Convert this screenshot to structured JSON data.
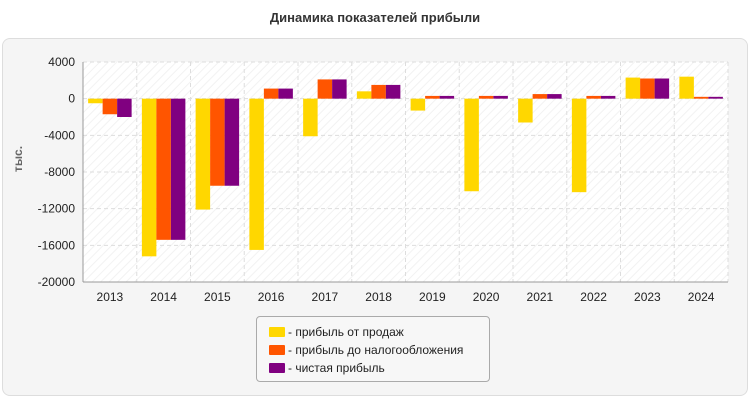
{
  "chart_data": {
    "type": "bar",
    "title": "Динамика показателей прибыли",
    "ylabel": "тыс.",
    "xlabel": "",
    "ylim": [
      -20000,
      4000
    ],
    "yticks": [
      4000,
      0,
      -4000,
      -8000,
      -12000,
      -16000,
      -20000
    ],
    "grid": true,
    "legend_position": "bottom",
    "categories": [
      "2013",
      "2014",
      "2015",
      "2016",
      "2017",
      "2018",
      "2019",
      "2020",
      "2021",
      "2022",
      "2023",
      "2024"
    ],
    "series": [
      {
        "name": "прибыль от продаж",
        "color": "#FFD700",
        "values": [
          -500,
          -17200,
          -12100,
          -16500,
          -4100,
          800,
          -1300,
          -10100,
          -2600,
          -10200,
          2300,
          2400
        ]
      },
      {
        "name": "прибыль до налогообложения",
        "color": "#FF5500",
        "values": [
          -1700,
          -15400,
          -9500,
          1100,
          2100,
          1500,
          300,
          300,
          500,
          300,
          2200,
          200
        ]
      },
      {
        "name": "чистая прибыль",
        "color": "#800080",
        "values": [
          -2000,
          -15400,
          -9500,
          1100,
          2100,
          1500,
          300,
          300,
          500,
          300,
          2200,
          200
        ]
      }
    ]
  }
}
